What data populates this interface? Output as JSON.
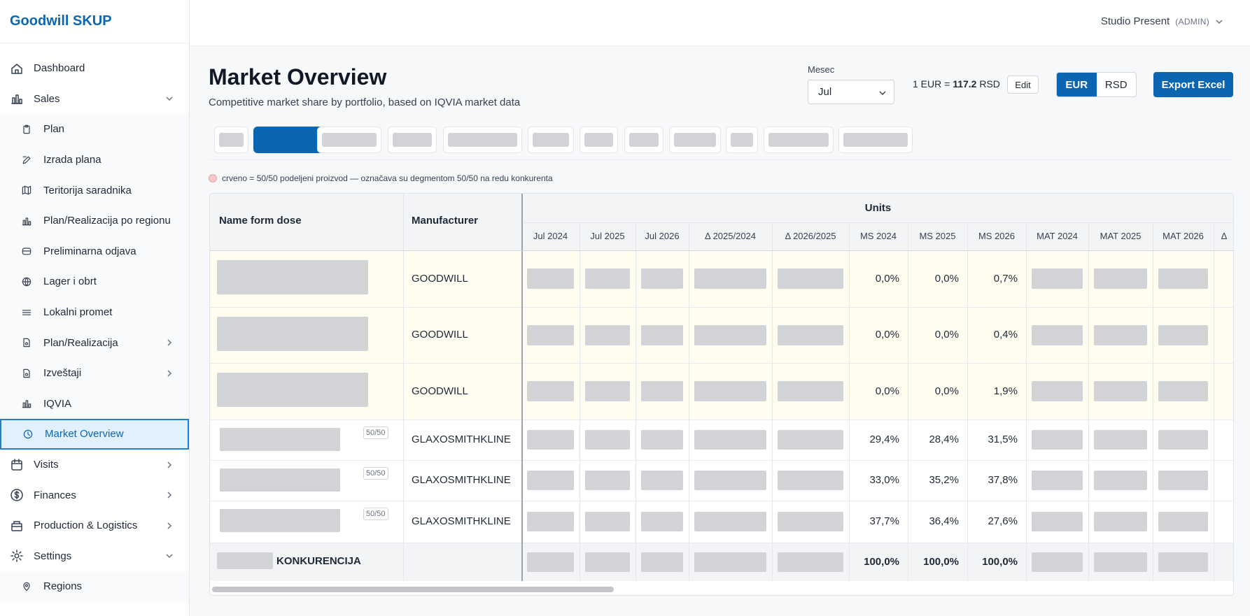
{
  "app": {
    "brand": "Goodwill SKUP"
  },
  "user": {
    "name": "Studio Present",
    "role": "(ADMIN)"
  },
  "sidebar": {
    "items": [
      {
        "label": "Dashboard",
        "icon": "home-icon",
        "level": "top"
      },
      {
        "label": "Sales",
        "icon": "bar-chart-icon",
        "level": "top",
        "chevron": "down"
      },
      {
        "label": "Plan",
        "icon": "clipboard-icon",
        "level": "sub"
      },
      {
        "label": "Izrada plana",
        "icon": "edit-icon",
        "level": "sub"
      },
      {
        "label": "Teritorija saradnika",
        "icon": "map-icon",
        "level": "sub"
      },
      {
        "label": "Plan/Realizacija po regionu",
        "icon": "bar-chart-icon",
        "level": "sub"
      },
      {
        "label": "Preliminarna odjava",
        "icon": "inbox-icon",
        "level": "sub"
      },
      {
        "label": "Lager i obrt",
        "icon": "globe-icon",
        "level": "sub"
      },
      {
        "label": "Lokalni promet",
        "icon": "list-icon",
        "level": "sub"
      },
      {
        "label": "Plan/Realizacija",
        "icon": "document-icon",
        "level": "sub",
        "chevron": "right"
      },
      {
        "label": "Izveštaji",
        "icon": "document-icon",
        "level": "sub",
        "chevron": "right"
      },
      {
        "label": "IQVIA",
        "icon": "bar-chart-icon",
        "level": "sub"
      },
      {
        "label": "Market Overview",
        "icon": "clock-icon",
        "level": "sub",
        "active": true
      },
      {
        "label": "Visits",
        "icon": "calendar-icon",
        "level": "top",
        "chevron": "right"
      },
      {
        "label": "Finances",
        "icon": "dollar-icon",
        "level": "top",
        "chevron": "right"
      },
      {
        "label": "Production & Logistics",
        "icon": "package-icon",
        "level": "top",
        "chevron": "right"
      },
      {
        "label": "Settings",
        "icon": "gear-icon",
        "level": "top",
        "chevron": "down"
      },
      {
        "label": "Regions",
        "icon": "pin-icon",
        "level": "sub"
      }
    ]
  },
  "page": {
    "title": "Market Overview",
    "subtitle": "Competitive market share by portfolio, based on IQVIA market data"
  },
  "controls": {
    "month_label": "Mesec",
    "month_value": "Jul",
    "rate_prefix": "1 EUR = ",
    "rate_value": "117.2",
    "rate_suffix": " RSD",
    "edit_label": "Edit",
    "currency_options": [
      "EUR",
      "RSD"
    ],
    "currency_selected": "EUR",
    "export_label": "Export Excel"
  },
  "legend": {
    "text": "crveno = 50/50 podeljeni proizvod — označava su degmentom 50/50 na redu konkurenta"
  },
  "table": {
    "col_name": "Name form dose",
    "col_manufacturer": "Manufacturer",
    "group_header": "Units",
    "columns": [
      "Jul 2024",
      "Jul 2025",
      "Jul 2026",
      "Δ 2025/2024",
      "Δ 2026/2025",
      "MS 2024",
      "MS 2025",
      "MS 2026",
      "MAT 2024",
      "MAT 2025",
      "MAT 2026",
      "Δ"
    ],
    "rows": [
      {
        "manufacturer": "GOODWILL",
        "badge": "",
        "ms2024": "0,0%",
        "ms2025": "0,0%",
        "ms2026": "0,7%",
        "highlight": true
      },
      {
        "manufacturer": "GOODWILL",
        "badge": "",
        "ms2024": "0,0%",
        "ms2025": "0,0%",
        "ms2026": "0,4%",
        "highlight": true
      },
      {
        "manufacturer": "GOODWILL",
        "badge": "",
        "ms2024": "0,0%",
        "ms2025": "0,0%",
        "ms2026": "1,9%",
        "highlight": true
      },
      {
        "manufacturer": "GLAXOSMITHKLINE",
        "badge": "50/50",
        "ms2024": "29,4%",
        "ms2025": "28,4%",
        "ms2026": "31,5%",
        "highlight": false
      },
      {
        "manufacturer": "GLAXOSMITHKLINE",
        "badge": "50/50",
        "ms2024": "33,0%",
        "ms2025": "35,2%",
        "ms2026": "37,8%",
        "highlight": false
      },
      {
        "manufacturer": "GLAXOSMITHKLINE",
        "badge": "50/50",
        "ms2024": "37,7%",
        "ms2025": "36,4%",
        "ms2026": "27,6%",
        "highlight": false
      }
    ],
    "total": {
      "label": "KONKURENCIJA",
      "ms2024": "100,0%",
      "ms2025": "100,0%",
      "ms2026": "100,0%"
    }
  },
  "colors": {
    "accent": "#0b66b2",
    "highlight_row": "#fefdf0",
    "total_row": "#f3f4f6"
  }
}
